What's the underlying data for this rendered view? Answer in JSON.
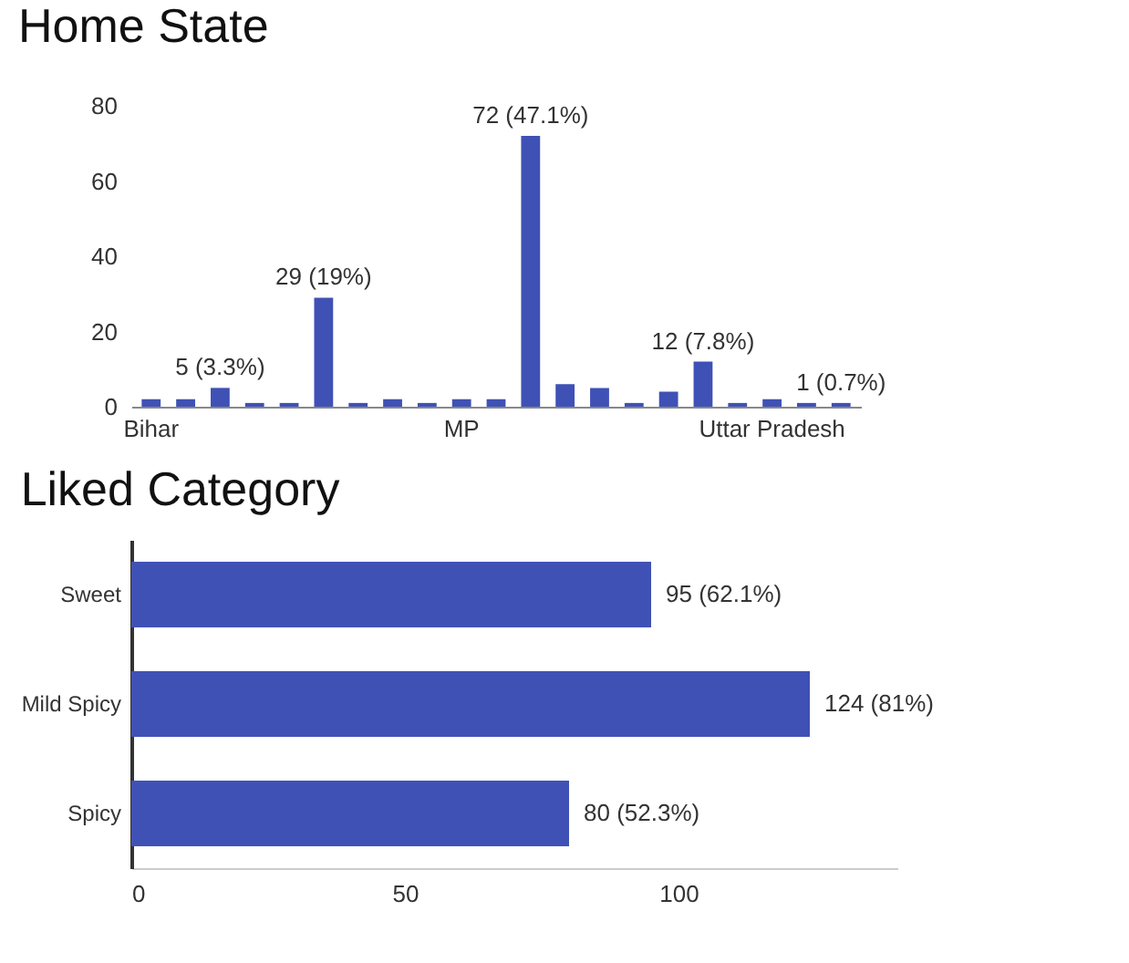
{
  "chart_data": [
    {
      "type": "bar",
      "title": "Home State",
      "categories": [
        "Bihar",
        null,
        null,
        null,
        null,
        null,
        null,
        null,
        null,
        "MP",
        null,
        null,
        null,
        null,
        null,
        null,
        null,
        null,
        "Uttar Pradesh",
        null,
        null
      ],
      "values": [
        2,
        2,
        5,
        1,
        1,
        29,
        1,
        2,
        1,
        2,
        2,
        72,
        6,
        5,
        1,
        4,
        12,
        1,
        2,
        1,
        1
      ],
      "value_labels": [
        null,
        null,
        "5 (3.3%)",
        null,
        null,
        "29 (19%)",
        null,
        null,
        null,
        null,
        null,
        "72 (47.1%)",
        null,
        null,
        null,
        null,
        "12 (7.8%)",
        null,
        null,
        null,
        "1 (0.7%)"
      ],
      "color": "#3f51b5",
      "ylim": [
        0,
        80
      ],
      "yticks": [
        0,
        20,
        40,
        60,
        80
      ],
      "grid": false
    },
    {
      "type": "bar",
      "title": "Liked Category",
      "orientation": "horizontal",
      "categories": [
        "Sweet",
        "Mild Spicy",
        "Spicy"
      ],
      "values": [
        95,
        124,
        80
      ],
      "value_labels": [
        "95 (62.1%)",
        "124 (81%)",
        "80 (52.3%)"
      ],
      "color": "#3f51b5",
      "xlim": [
        0,
        140
      ],
      "xticks": [
        0,
        50,
        100
      ],
      "grid": false
    }
  ]
}
